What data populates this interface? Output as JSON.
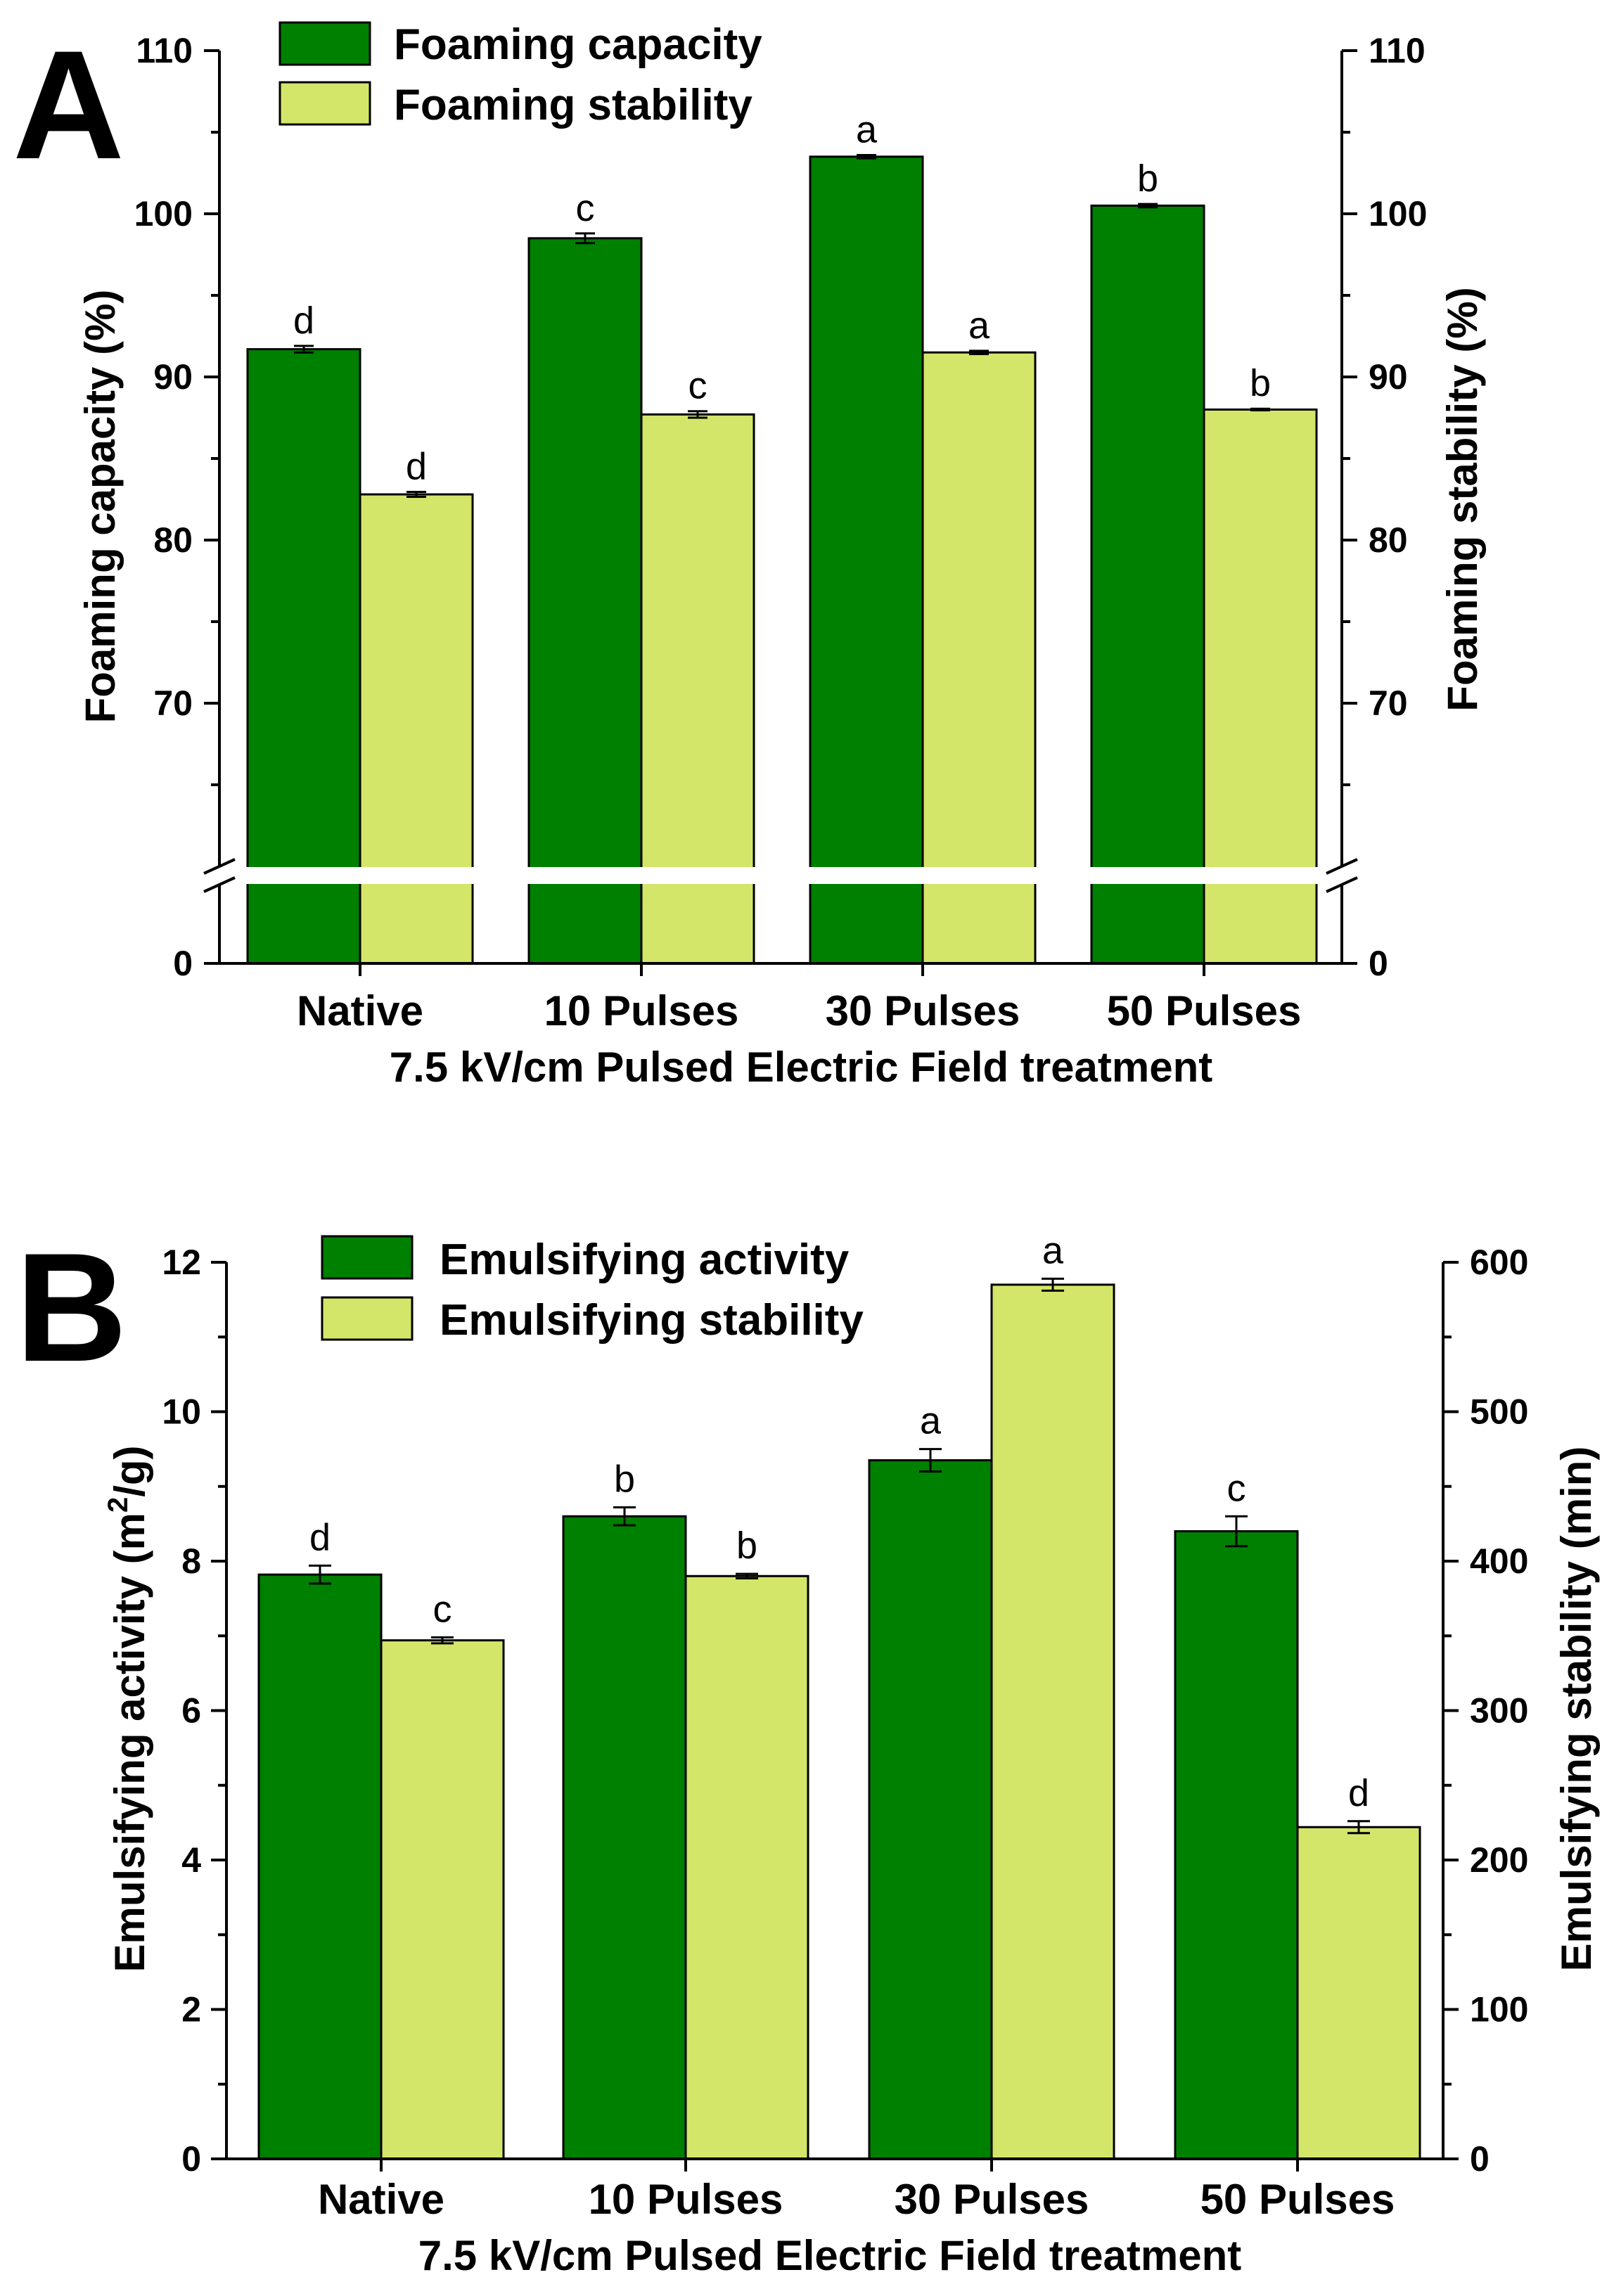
{
  "colors": {
    "dark_series": "#008000",
    "light_series": "#d4e66a",
    "axis": "#000000"
  },
  "chart_data": [
    {
      "type": "bar",
      "panel_label": "A",
      "title": "",
      "categories": [
        "Native",
        "10 Pulses",
        "30 Pulses",
        "50 Pulses"
      ],
      "xlabel": "7.5 kV/cm  Pulsed Electric Field treatment",
      "ylabel_left": "Foaming capacity (%)",
      "ylabel_right": "Foaming stability (%)",
      "y_axis_break": {
        "lower_range": [
          0,
          6
        ],
        "upper_range": [
          60,
          110
        ]
      },
      "left_ticks": [
        "0",
        "70",
        "80",
        "90",
        "100",
        "110"
      ],
      "right_ticks": [
        "0",
        "70",
        "80",
        "90",
        "100",
        "110"
      ],
      "legend_position": "top-left",
      "series": [
        {
          "name": "Foaming capacity",
          "axis": "left",
          "color": "#008000",
          "values": [
            91.7,
            98.5,
            103.5,
            100.5
          ],
          "errors": [
            0.2,
            0.3,
            0.1,
            0.1
          ],
          "significance": [
            "d",
            "c",
            "a",
            "b"
          ]
        },
        {
          "name": "Foaming stability",
          "axis": "right",
          "color": "#d4e66a",
          "values": [
            82.8,
            87.7,
            91.5,
            88.0
          ],
          "errors": [
            0.15,
            0.2,
            0.1,
            0.05
          ],
          "significance": [
            "d",
            "c",
            "a",
            "b"
          ]
        }
      ]
    },
    {
      "type": "bar",
      "panel_label": "B",
      "title": "",
      "categories": [
        "Native",
        "10 Pulses",
        "30 Pulses",
        "50 Pulses"
      ],
      "xlabel": "7.5 kV/cm  Pulsed Electric Field treatment",
      "ylabel_left_main": "Emulsifying activity (m",
      "ylabel_left_sup": "2",
      "ylabel_left_end": "/g)",
      "ylabel_right": "Emulsifying stability (min)",
      "ylim_left": [
        0,
        12
      ],
      "ylim_right": [
        0,
        600
      ],
      "left_ticks": [
        "0",
        "2",
        "4",
        "6",
        "8",
        "10",
        "12"
      ],
      "right_ticks": [
        "0",
        "100",
        "200",
        "300",
        "400",
        "500",
        "600"
      ],
      "legend_position": "top-left",
      "series": [
        {
          "name": "Emulsifying activity",
          "axis": "left",
          "color": "#008000",
          "values": [
            7.82,
            8.6,
            9.35,
            8.4
          ],
          "errors": [
            0.12,
            0.12,
            0.15,
            0.2
          ],
          "significance": [
            "d",
            "b",
            "a",
            "c"
          ]
        },
        {
          "name": "Emulsifying stability",
          "axis": "right",
          "color": "#d4e66a",
          "values": [
            347,
            390,
            585,
            222
          ],
          "errors": [
            2,
            1.5,
            4,
            4
          ],
          "significance": [
            "c",
            "b",
            "a",
            "d"
          ]
        }
      ]
    }
  ]
}
